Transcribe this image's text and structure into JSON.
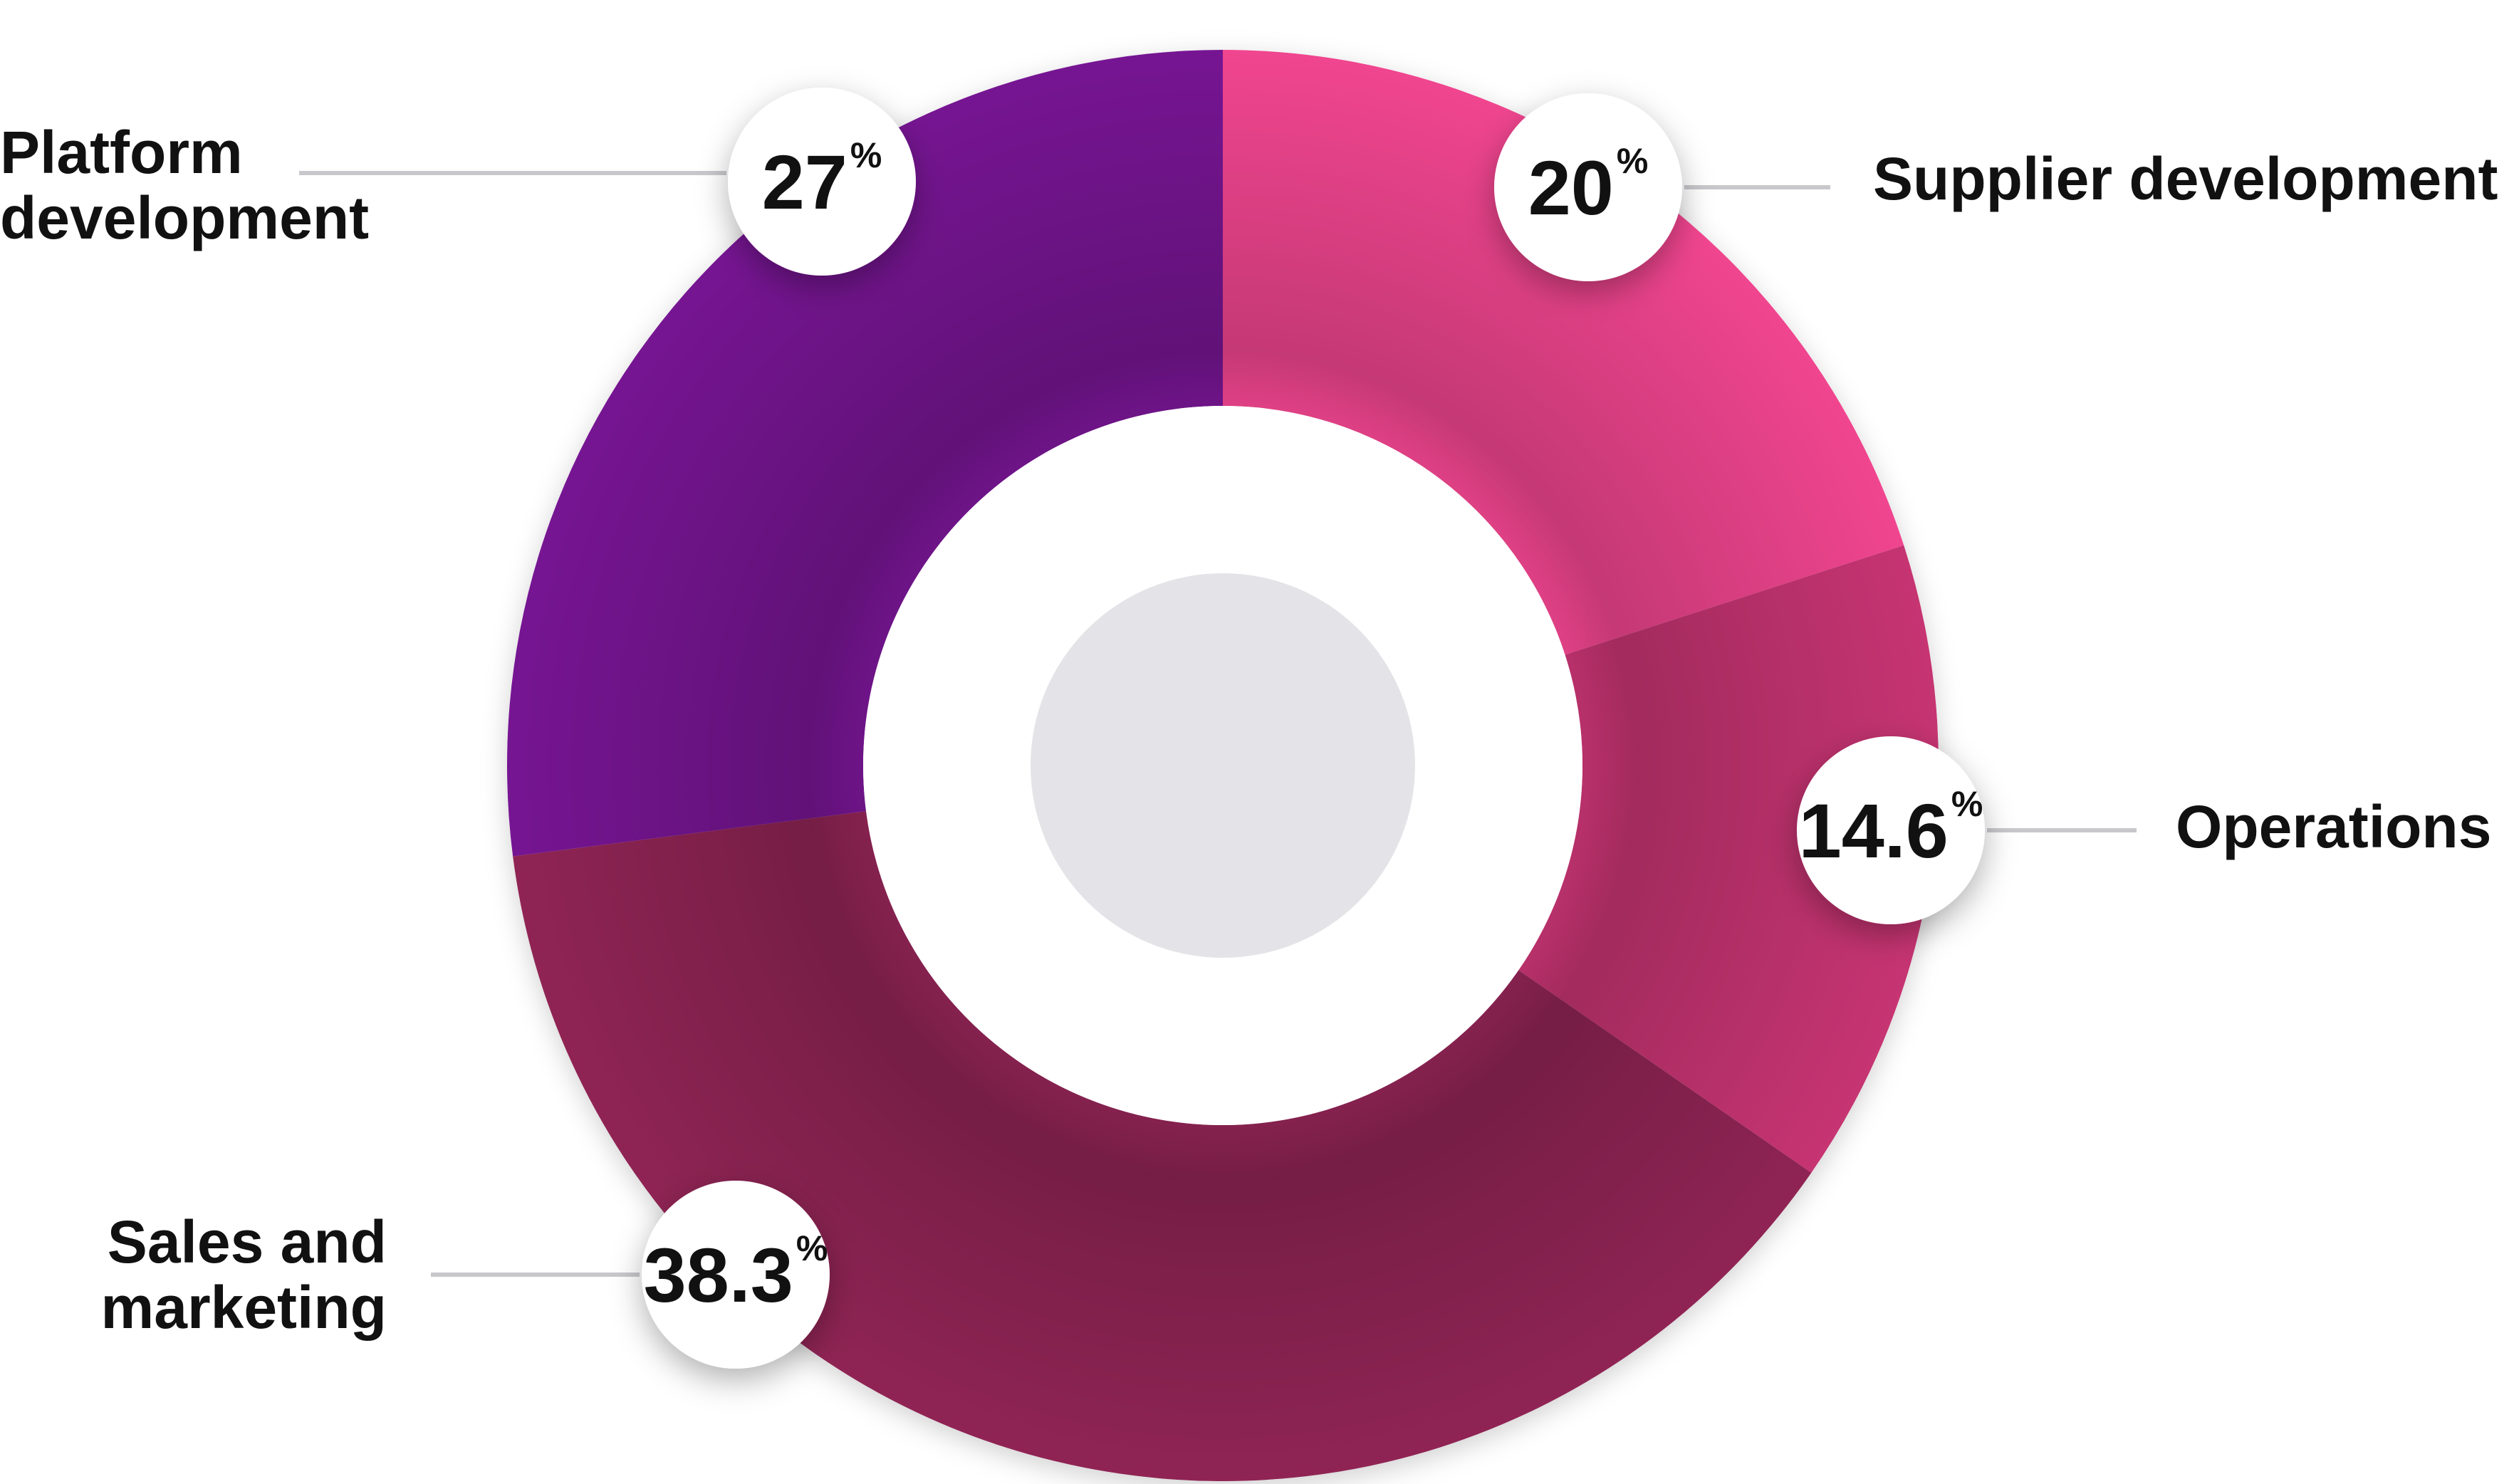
{
  "chart_data": {
    "type": "pie",
    "donut": true,
    "percent_symbol": "%",
    "slices": [
      {
        "label": "Supplier development",
        "value": 20,
        "value_text": "20",
        "color": "#f0458f"
      },
      {
        "label": "Operations",
        "value": 14.6,
        "value_text": "14.6",
        "color": "#c63472"
      },
      {
        "label": "Sales and marketing",
        "value": 38.3,
        "value_text": "38.3",
        "color": "#8f2454"
      },
      {
        "label": "Platform development",
        "value": 27,
        "value_text": "27",
        "color": "#761592"
      }
    ],
    "center_color": "#e4e4e8",
    "leader_line_color": "#c8c8cc"
  }
}
